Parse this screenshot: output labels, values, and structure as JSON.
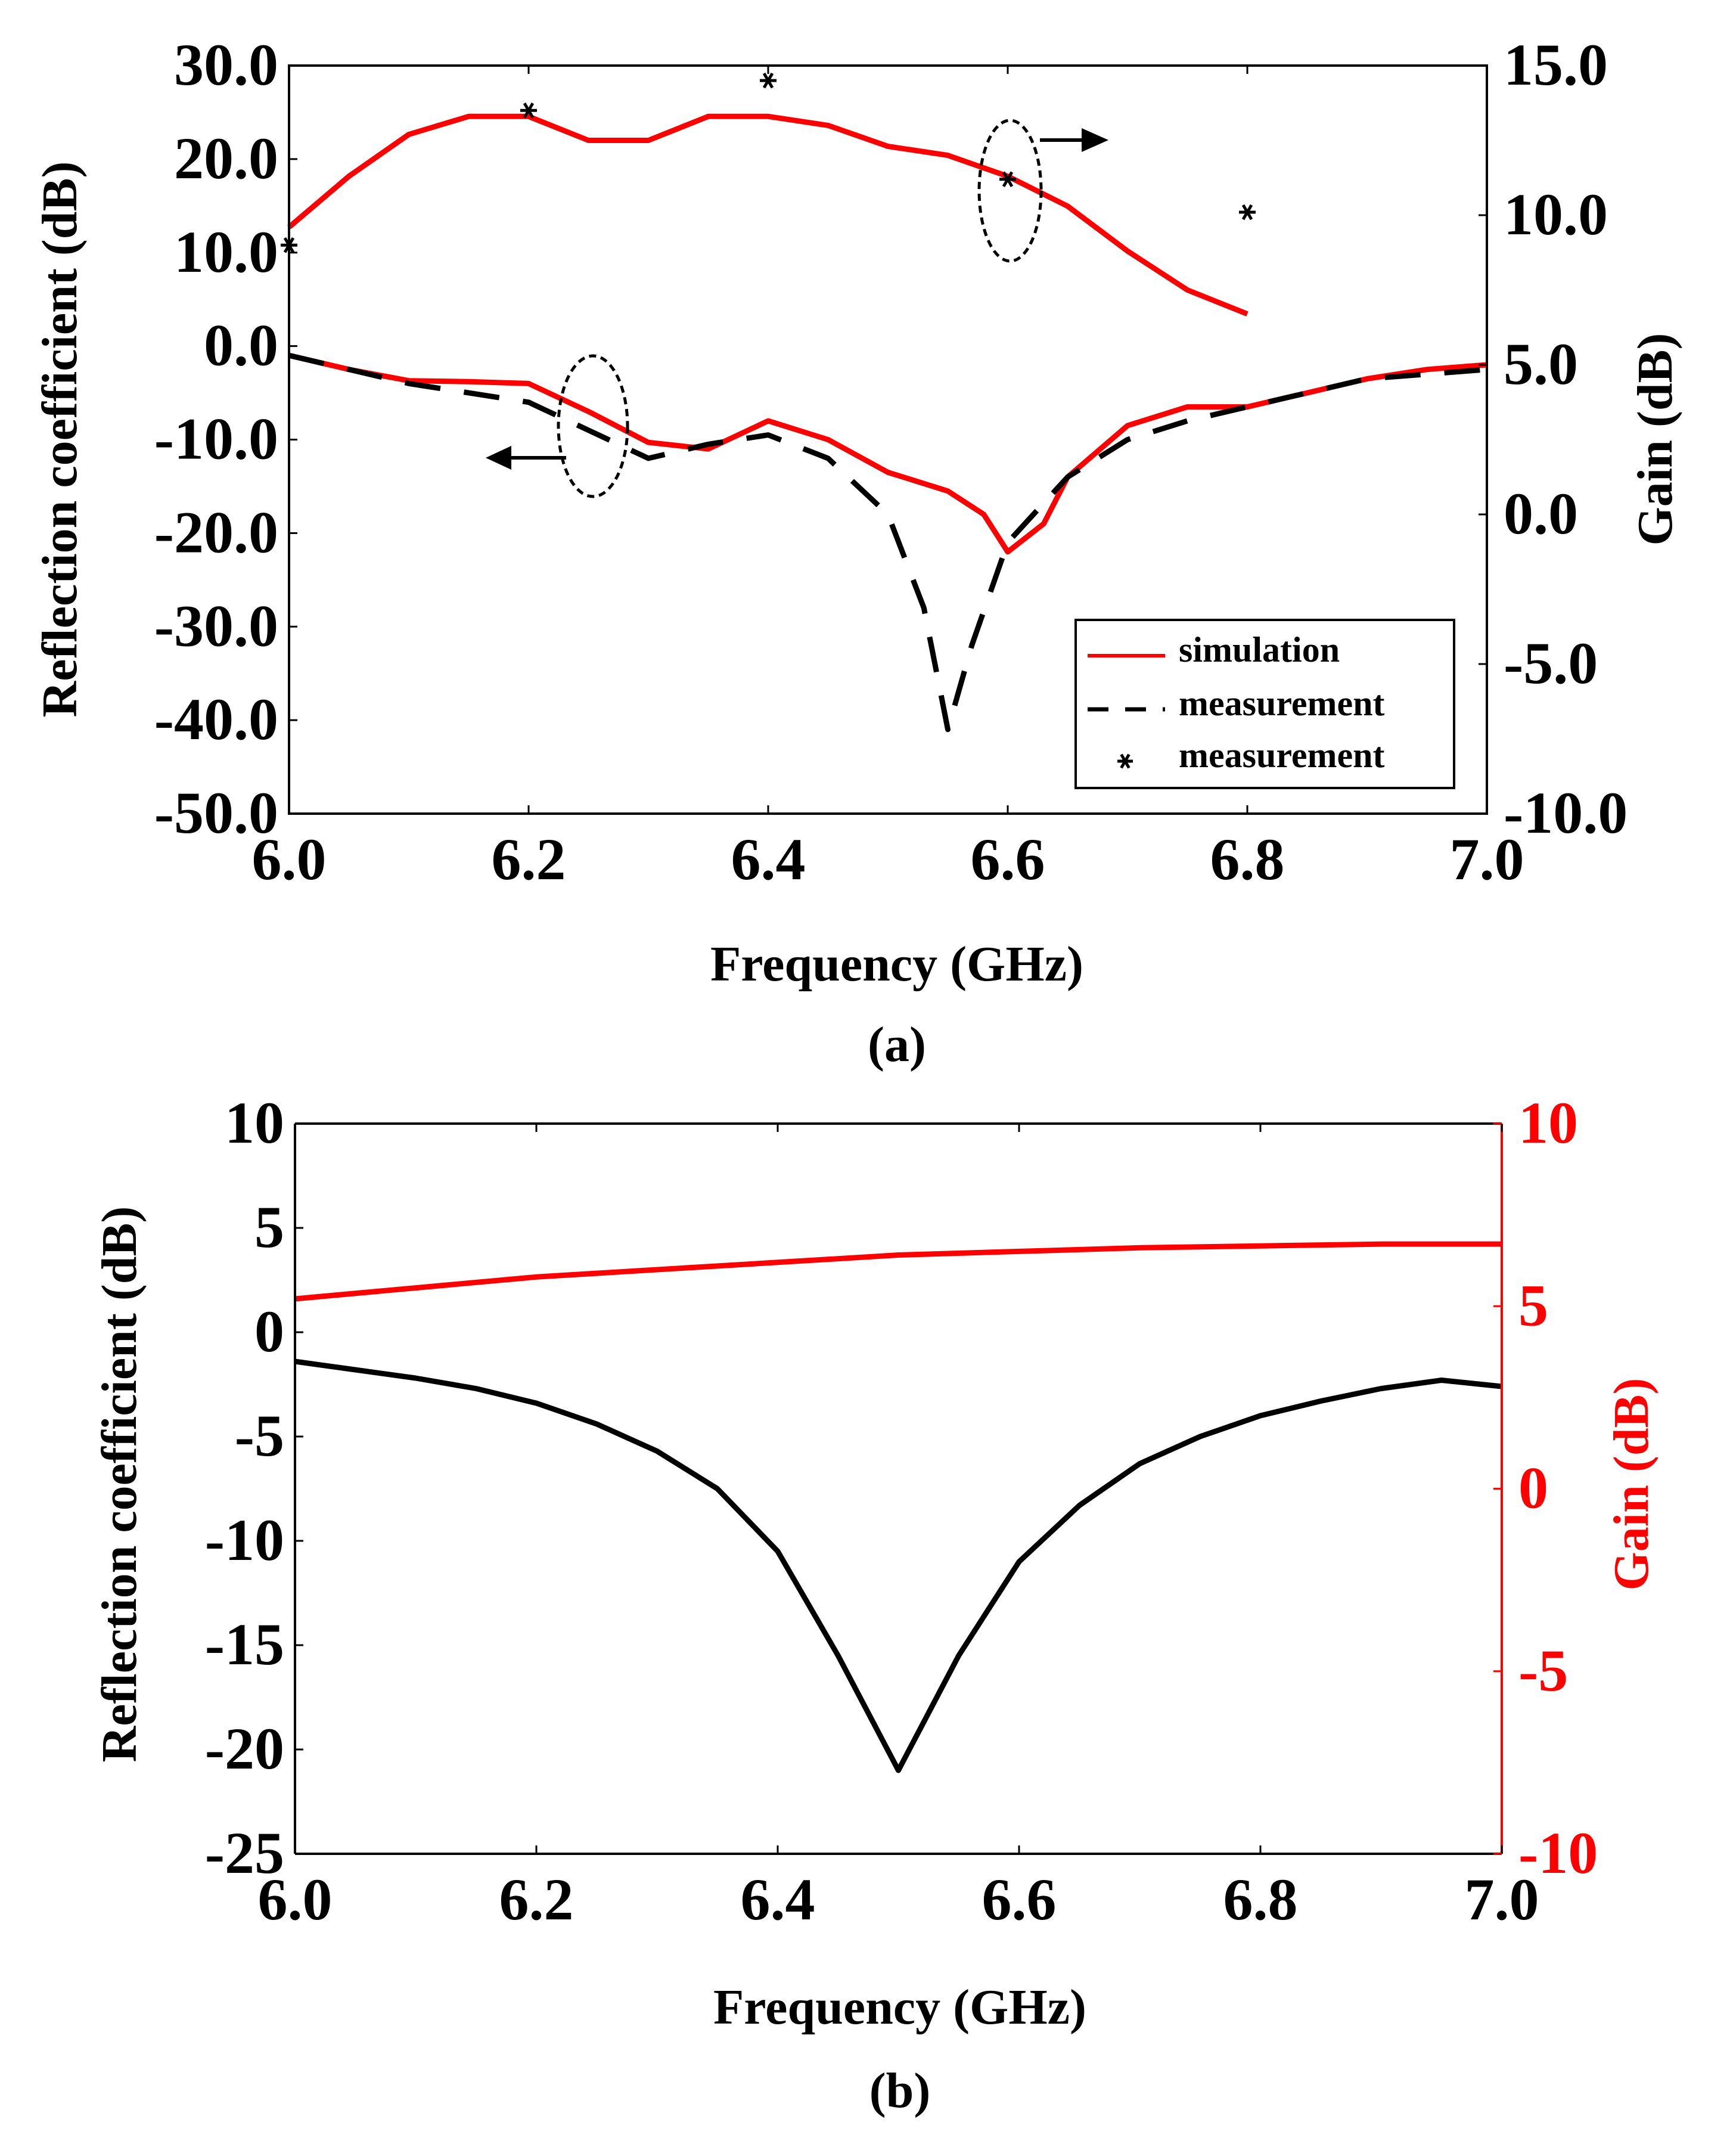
{
  "figure": {
    "colors": {
      "simulation": "#ff0000",
      "measurement": "#000000",
      "gain_axis_b": "#ff0000"
    }
  },
  "chart_data": [
    {
      "panel_label": "(a)",
      "type": "line",
      "xlabel": "Frequency (GHz)",
      "ylabel": "Reflection coefficient (dB)",
      "y2label": "Gain (dB)",
      "xlim": [
        6.0,
        7.0
      ],
      "ylim": [
        -50,
        30
      ],
      "y2lim": [
        -10,
        15
      ],
      "x_ticks": [
        "6.0",
        "6.2",
        "6.4",
        "6.6",
        "6.8",
        "7.0"
      ],
      "y_ticks": [
        "30.0",
        "20.0",
        "10.0",
        "0.0",
        "-10.0",
        "-20.0",
        "-30.0",
        "-40.0",
        "-50.0"
      ],
      "y2_ticks": [
        "15.0",
        "10.0",
        "5.0",
        "0.0",
        "-5.0",
        "-10.0"
      ],
      "legend": {
        "position": "bottom-right",
        "entries": [
          {
            "label": "simulation",
            "style": "solid-red"
          },
          {
            "label": "measurement",
            "style": "dashed-black"
          },
          {
            "label": "measurement",
            "style": "star-black"
          }
        ]
      },
      "series": [
        {
          "name": "simulation",
          "axis": "left",
          "style": "solid",
          "color": "#ff0000",
          "x": [
            6.0,
            6.05,
            6.1,
            6.15,
            6.2,
            6.25,
            6.3,
            6.35,
            6.4,
            6.45,
            6.5,
            6.55,
            6.58,
            6.6,
            6.63,
            6.65,
            6.7,
            6.75,
            6.8,
            6.85,
            6.9,
            6.95,
            7.0
          ],
          "values": [
            -1.0,
            -2.5,
            -3.7,
            -3.8,
            -4.0,
            -7.0,
            -10.3,
            -11.0,
            -8.0,
            -10.0,
            -13.5,
            -15.5,
            -18.0,
            -22.0,
            -19.0,
            -14.0,
            -8.5,
            -6.5,
            -6.5,
            -5.0,
            -3.5,
            -2.5,
            -2.0
          ]
        },
        {
          "name": "measurement",
          "axis": "left",
          "style": "dashed",
          "color": "#000000",
          "x": [
            6.0,
            6.05,
            6.1,
            6.15,
            6.2,
            6.25,
            6.3,
            6.35,
            6.4,
            6.45,
            6.5,
            6.53,
            6.55,
            6.57,
            6.6,
            6.65,
            6.7,
            6.75,
            6.8,
            6.85,
            6.9,
            6.95,
            7.0
          ],
          "values": [
            -1.0,
            -2.5,
            -4.0,
            -5.0,
            -6.0,
            -9.0,
            -12.0,
            -10.5,
            -9.5,
            -12.0,
            -18.0,
            -28.0,
            -41.0,
            -32.0,
            -21.0,
            -14.0,
            -10.0,
            -8.0,
            -6.5,
            -5.0,
            -3.5,
            -3.0,
            -2.5
          ]
        },
        {
          "name": "simulation (gain)",
          "axis": "right",
          "style": "solid",
          "color": "#ff0000",
          "x": [
            6.0,
            6.05,
            6.1,
            6.15,
            6.2,
            6.25,
            6.3,
            6.35,
            6.4,
            6.45,
            6.5,
            6.55,
            6.6,
            6.65,
            6.7,
            6.75,
            6.8
          ],
          "values": [
            9.6,
            11.3,
            12.7,
            13.3,
            13.3,
            12.5,
            12.5,
            13.3,
            13.3,
            13.0,
            12.3,
            12.0,
            11.3,
            10.3,
            8.8,
            7.5,
            6.7
          ]
        },
        {
          "name": "measurement (gain)",
          "axis": "right",
          "style": "star",
          "color": "#000000",
          "x": [
            6.0,
            6.2,
            6.4,
            6.6,
            6.8
          ],
          "values": [
            9.0,
            13.5,
            14.5,
            11.2,
            10.1
          ]
        }
      ]
    },
    {
      "panel_label": "(b)",
      "type": "line",
      "xlabel": "Frequency (GHz)",
      "ylabel": "Reflection coefficient (dB)",
      "y2label": "Gain (dB)",
      "xlim": [
        6.0,
        7.0
      ],
      "ylim": [
        -25,
        10
      ],
      "y2lim": [
        -10,
        10
      ],
      "x_ticks": [
        "6.0",
        "6.2",
        "6.4",
        "6.6",
        "6.8",
        "7.0"
      ],
      "y_ticks": [
        "10",
        "5",
        "0",
        "-5",
        "-10",
        "-15",
        "-20",
        "-25"
      ],
      "y2_ticks": [
        "10",
        "5",
        "0",
        "-5",
        "-10"
      ],
      "series": [
        {
          "name": "reflection coefficient",
          "axis": "left",
          "style": "solid",
          "color": "#000000",
          "x": [
            6.0,
            6.05,
            6.1,
            6.15,
            6.2,
            6.25,
            6.3,
            6.35,
            6.4,
            6.45,
            6.5,
            6.55,
            6.6,
            6.65,
            6.7,
            6.75,
            6.8,
            6.85,
            6.9,
            6.95,
            7.0
          ],
          "values": [
            -1.4,
            -1.8,
            -2.2,
            -2.7,
            -3.4,
            -4.4,
            -5.7,
            -7.5,
            -10.5,
            -15.5,
            -21.0,
            -15.5,
            -11.0,
            -8.3,
            -6.3,
            -5.0,
            -4.0,
            -3.3,
            -2.7,
            -2.3,
            -2.6
          ]
        },
        {
          "name": "gain",
          "axis": "right",
          "style": "solid",
          "color": "#ff0000",
          "x": [
            6.0,
            6.1,
            6.2,
            6.3,
            6.4,
            6.5,
            6.6,
            6.7,
            6.8,
            6.9,
            7.0
          ],
          "values": [
            5.2,
            5.5,
            5.8,
            6.0,
            6.2,
            6.4,
            6.5,
            6.6,
            6.65,
            6.7,
            6.7
          ]
        }
      ]
    }
  ]
}
